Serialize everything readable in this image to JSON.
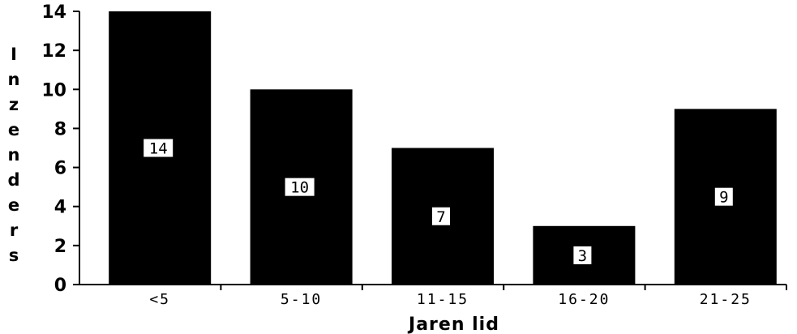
{
  "chart_data": {
    "type": "bar",
    "categories": [
      "<5",
      "5-10",
      "11-15",
      "16-20",
      "21-25"
    ],
    "values": [
      14,
      10,
      7,
      3,
      9
    ],
    "data_labels": [
      "14",
      "10",
      "7",
      "3",
      "9"
    ],
    "xlabel": "Jaren lid",
    "ylabel": "Inzenders",
    "ylim": [
      0,
      14
    ],
    "yticks": [
      0,
      2,
      4,
      6,
      8,
      10,
      12,
      14
    ],
    "ytick_labels": [
      "0",
      "2",
      "4",
      "6",
      "8",
      "10",
      "12",
      "14"
    ],
    "grid": false,
    "bar_color": "#000000",
    "label_box_color": "#ffffff"
  }
}
